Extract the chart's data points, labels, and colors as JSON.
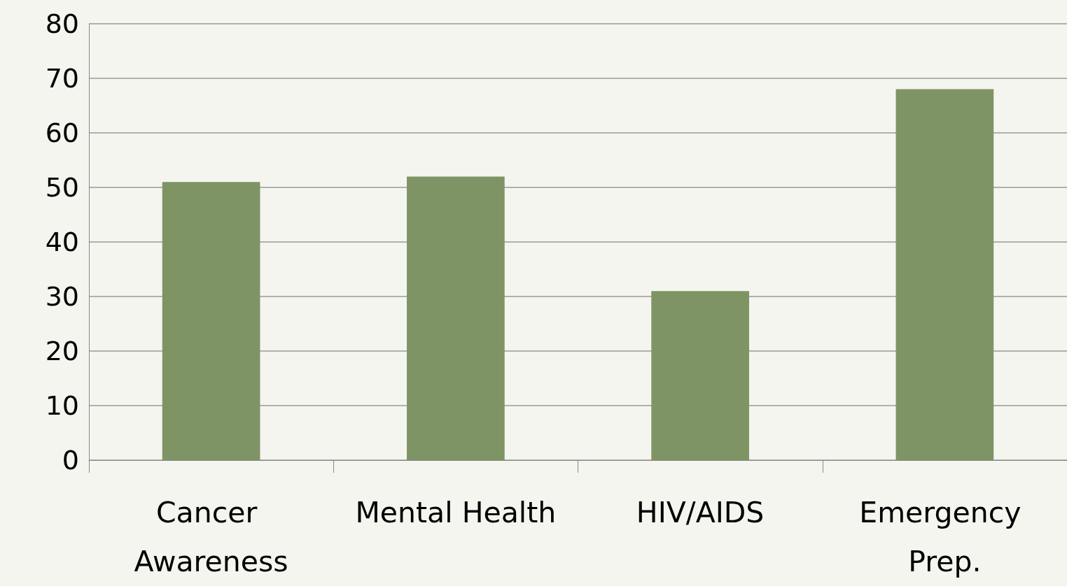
{
  "chart_data": {
    "type": "bar",
    "categories": [
      "Cancer Awareness",
      "Mental Health",
      "HIV/AIDS",
      "Emergency Prep."
    ],
    "values": [
      51,
      52,
      31,
      68
    ],
    "color": "#7f9464",
    "ylim": [
      0,
      80
    ],
    "yticks": [
      0,
      10,
      20,
      30,
      40,
      50,
      60,
      70,
      80
    ],
    "grid": "y"
  }
}
